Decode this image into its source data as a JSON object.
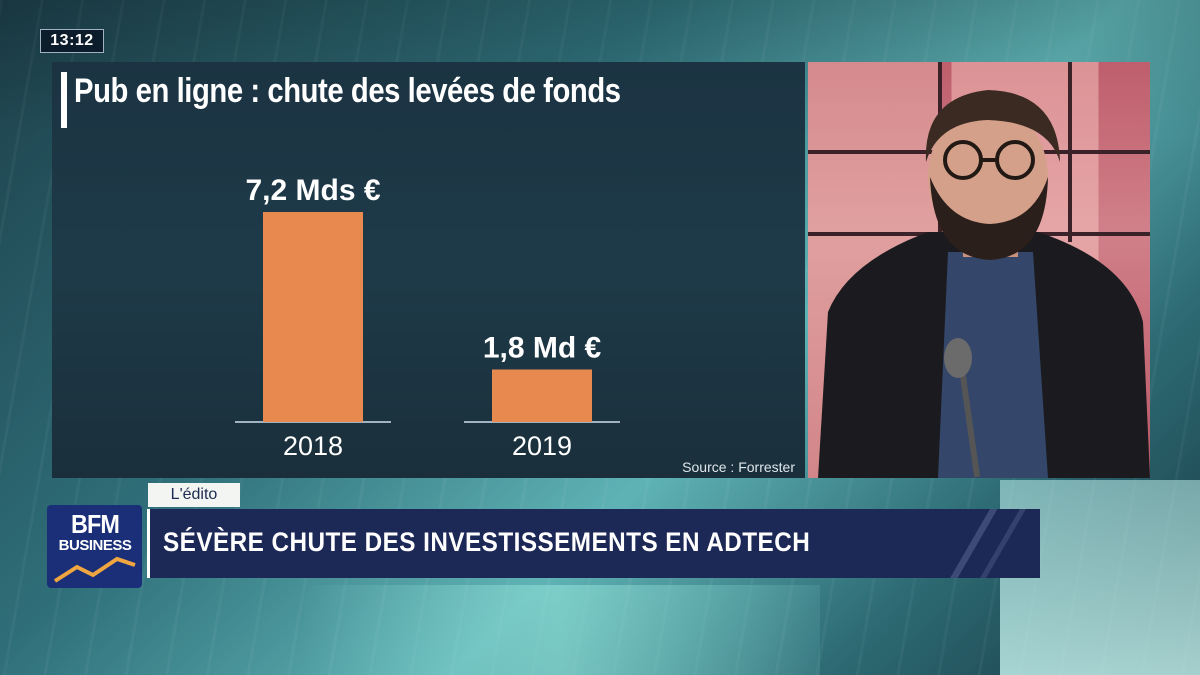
{
  "clock": "13:12",
  "panel": {
    "title": "Pub en ligne : chute des levées de fonds",
    "source": "Source : Forrester"
  },
  "chart_data": {
    "type": "bar",
    "categories": [
      "2018",
      "2019"
    ],
    "values": [
      7.2,
      1.8
    ],
    "value_labels": [
      "7,2 Mds €",
      "1,8 Md €"
    ],
    "title": "Pub en ligne : chute des levées de fonds",
    "unit": "Mds €",
    "ylim": [
      0,
      7.2
    ],
    "grid": false,
    "legend": "none",
    "bar_color": "#e8894f",
    "baseline_color": "#9fb3c0"
  },
  "lower_third": {
    "tab_label": "L'édito",
    "headline": "SÉVÈRE CHUTE DES INVESTISSEMENTS EN ADTECH"
  },
  "logo": {
    "main": "BFM",
    "sub": "BUSINESS",
    "icon": "bfm-business-logo"
  },
  "colors": {
    "headline_bg": "#1c2855",
    "panel_bg": "#1e3a48",
    "logo_bg": "#1a2f78"
  }
}
